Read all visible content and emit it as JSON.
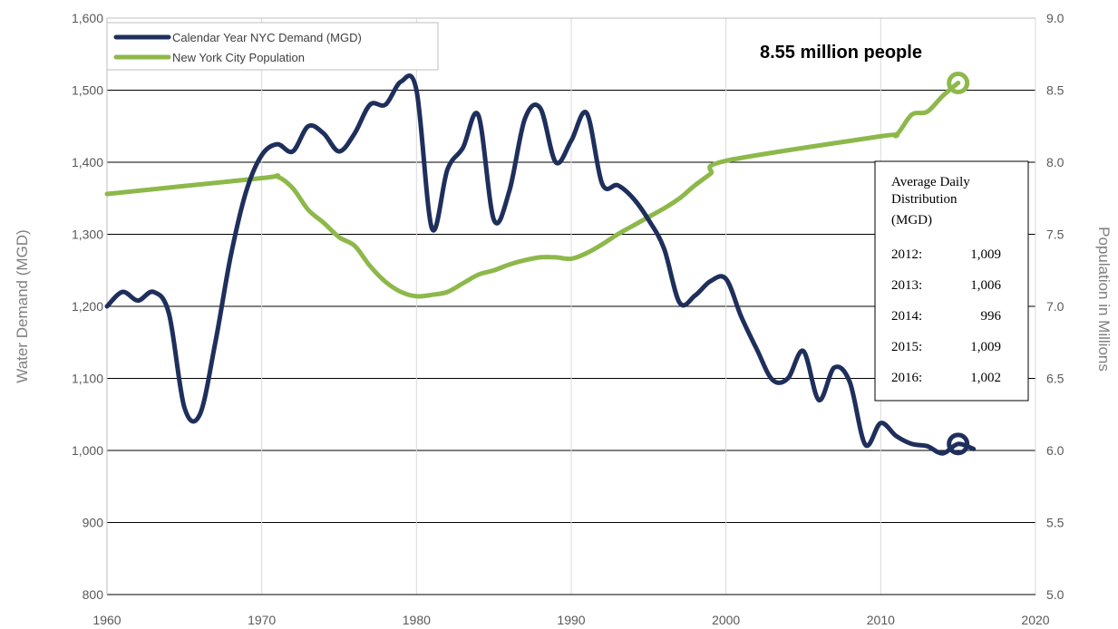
{
  "chart_data": {
    "type": "line",
    "xlabel": "",
    "ylabel": "Water Demand (MGD)",
    "y2label": "Population in Millions",
    "xlim": [
      1960,
      2020
    ],
    "ylim": [
      800,
      1600
    ],
    "y2lim": [
      5.0,
      9.0
    ],
    "grid": "horizontal-and-vertical",
    "legend_position": "top-left",
    "x_ticks": [
      "1960",
      "1970",
      "1980",
      "1990",
      "2000",
      "2010",
      "2020"
    ],
    "y_ticks": [
      "800",
      "900",
      "1,000",
      "1,100",
      "1,200",
      "1,300",
      "1,400",
      "1,500",
      "1,600"
    ],
    "y2_ticks": [
      "5.0",
      "5.5",
      "6.0",
      "6.5",
      "7.0",
      "7.5",
      "8.0",
      "8.5",
      "9.0"
    ],
    "series": [
      {
        "name": "Calendar Year NYC Demand (MGD)",
        "axis": "left",
        "color": "#1f2f5c",
        "x": [
          1960,
          1961,
          1962,
          1963,
          1964,
          1965,
          1966,
          1967,
          1968,
          1969,
          1970,
          1971,
          1972,
          1973,
          1974,
          1975,
          1976,
          1977,
          1978,
          1979,
          1980,
          1981,
          1982,
          1983,
          1984,
          1985,
          1986,
          1987,
          1988,
          1989,
          1990,
          1991,
          1992,
          1993,
          1994,
          1995,
          1996,
          1997,
          1998,
          1999,
          2000,
          2001,
          2002,
          2003,
          2004,
          2005,
          2006,
          2007,
          2008,
          2009,
          2010,
          2011,
          2012,
          2013,
          2014,
          2015,
          2016
        ],
        "values": [
          1200,
          1220,
          1208,
          1220,
          1190,
          1060,
          1050,
          1150,
          1270,
          1360,
          1410,
          1425,
          1415,
          1450,
          1440,
          1415,
          1440,
          1480,
          1480,
          1512,
          1500,
          1308,
          1390,
          1420,
          1465,
          1320,
          1360,
          1460,
          1475,
          1400,
          1430,
          1468,
          1370,
          1368,
          1350,
          1320,
          1280,
          1205,
          1215,
          1235,
          1238,
          1185,
          1140,
          1098,
          1100,
          1138,
          1070,
          1115,
          1095,
          1008,
          1038,
          1020,
          1009,
          1006,
          996,
          1009,
          1002
        ]
      },
      {
        "name": "New York City Population",
        "axis": "right",
        "color": "#8db84a",
        "x": [
          1960,
          1970,
          1971,
          1972,
          1973,
          1974,
          1975,
          1976,
          1977,
          1978,
          1979,
          1980,
          1981,
          1982,
          1983,
          1984,
          1985,
          1986,
          1987,
          1988,
          1989,
          1990,
          1991,
          1992,
          1993,
          1994,
          1995,
          1996,
          1997,
          1998,
          1999,
          2000,
          2010,
          2011,
          2012,
          2013,
          2014,
          2015
        ],
        "values": [
          7.78,
          7.89,
          7.9,
          7.82,
          7.67,
          7.58,
          7.48,
          7.42,
          7.28,
          7.17,
          7.1,
          7.07,
          7.08,
          7.1,
          7.16,
          7.22,
          7.25,
          7.29,
          7.32,
          7.34,
          7.34,
          7.33,
          7.37,
          7.43,
          7.5,
          7.56,
          7.62,
          7.68,
          7.75,
          7.84,
          7.92,
          8.01,
          8.18,
          8.19,
          8.33,
          8.35,
          8.46,
          8.55
        ]
      }
    ],
    "annotations": [
      {
        "text": "8.55 million  people",
        "x": 2015,
        "y2": 8.55
      }
    ],
    "markers": [
      {
        "series": "Calendar Year NYC Demand (MGD)",
        "x": 2015,
        "y": 1009
      },
      {
        "series": "New York City Population",
        "x": 2015,
        "y2": 8.55
      }
    ],
    "inset_table": {
      "title_lines": [
        "Average  Daily",
        "Distribution",
        "(MGD)"
      ],
      "rows": [
        {
          "year": "2012:",
          "value": "1,009"
        },
        {
          "year": "2013:",
          "value": "1,006"
        },
        {
          "year": "2014:",
          "value": "996"
        },
        {
          "year": "2015:",
          "value": "1,009"
        },
        {
          "year": "2016:",
          "value": "1,002"
        }
      ]
    }
  }
}
